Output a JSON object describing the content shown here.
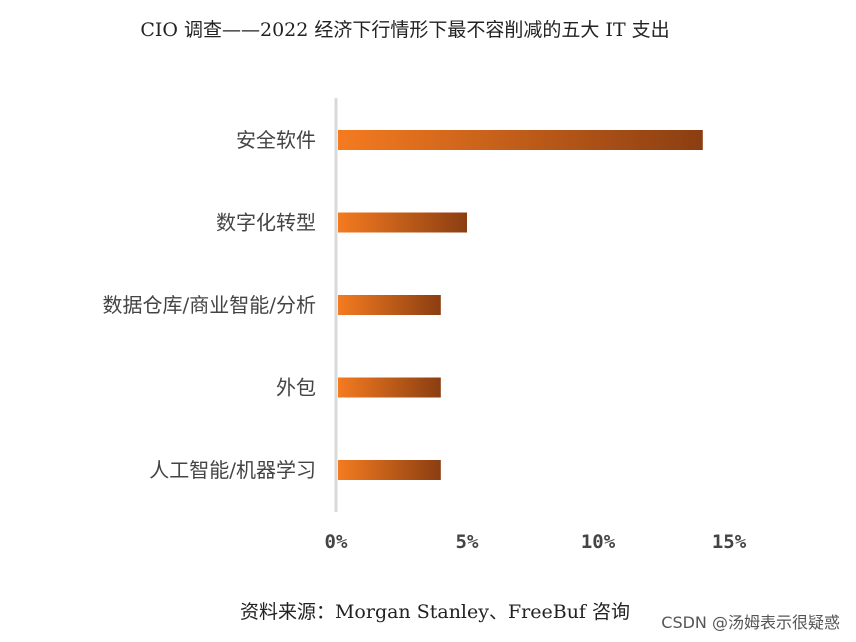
{
  "chart_data": {
    "type": "bar",
    "orientation": "horizontal",
    "title": "CIO 调查——2022 经济下行情形下最不容削减的五大 IT 支出",
    "categories": [
      "安全软件",
      "数字化转型",
      "数据仓库/商业智能/分析",
      "外包",
      "人工智能/机器学习"
    ],
    "values": [
      14,
      5,
      4,
      4,
      4
    ],
    "xlim": [
      0,
      15
    ],
    "xticks": [
      "0%",
      "5%",
      "10%",
      "15%"
    ],
    "xtick_values": [
      0,
      5,
      10,
      15
    ],
    "grid": false,
    "bar_gradient": [
      "#F47B20",
      "#8B3E12"
    ],
    "axis_color": "#D9D9D9"
  },
  "source": "资料来源：Morgan Stanley、FreeBuf 咨询",
  "watermark": "CSDN @汤姆表示很疑惑"
}
